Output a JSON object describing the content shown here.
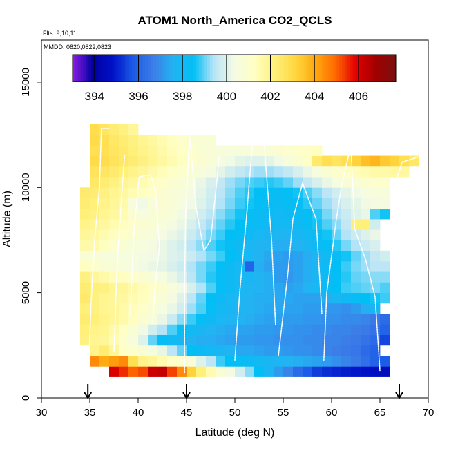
{
  "chart_data": {
    "type": "heatmap",
    "title": "ATOM1 North_America CO2_QCLS",
    "flights_label": "Flts: 9,10,11",
    "dates_label": "MMDD: 0820,0822,0823",
    "xlabel": "Latitude (deg N)",
    "ylabel": "Altitude (m)",
    "xlim": [
      30,
      70
    ],
    "ylim": [
      0,
      17000
    ],
    "x_ticks": [
      "30",
      "35",
      "40",
      "45",
      "50",
      "55",
      "60",
      "65",
      "70"
    ],
    "y_ticks": [
      "0",
      "5000",
      "10000",
      "15000"
    ],
    "colorbar": {
      "min": 393,
      "max": 407.7,
      "tick_values": [
        394,
        396,
        398,
        400,
        402,
        404,
        406
      ],
      "tick_labels": [
        "394",
        "396",
        "398",
        "400",
        "402",
        "404",
        "406"
      ],
      "colors": [
        "#8f1de6",
        "#0000a0",
        "#0011c8",
        "#1a5ae6",
        "#3d7de8",
        "#22b4f2",
        "#00bff5",
        "#b8e4f7",
        "#f4fbe3",
        "#ffffc4",
        "#fff07a",
        "#ffd840",
        "#ffaa10",
        "#ff6a00",
        "#e30000",
        "#a20000",
        "#7a1010"
      ]
    },
    "cell_size": {
      "lat": 1,
      "alt": 500
    },
    "rows": [
      {
        "alt": 1000,
        "lat_start": 37,
        "values": [
          406,
          405.5,
          405,
          405.2,
          406.2,
          406.3,
          405.3,
          404.5,
          403.2,
          402.2,
          401.5,
          400.8,
          400.4,
          399.8,
          399.2,
          398.5,
          397.8,
          397.2,
          396.8,
          396.2,
          395.8,
          395.4,
          395.2,
          395.1,
          395,
          394.9,
          394.8,
          394.7,
          394.6
        ]
      },
      {
        "alt": 1500,
        "lat_start": 35,
        "values": [
          404.5,
          404,
          404.2,
          404.5,
          402.8,
          402,
          401.8,
          401.5,
          401.2,
          401,
          400.6,
          400,
          399.5,
          398.8,
          398.5,
          398.3,
          398.1,
          398,
          397.8,
          397.7,
          397.6,
          397.5,
          397.4,
          397.3,
          397.2,
          397,
          396.8,
          396.6,
          396.3,
          396,
          395.8
        ]
      },
      {
        "alt": 2000,
        "lat_start": 35,
        "values": [
          402,
          402.3,
          401.8,
          401.2,
          401,
          400.8,
          400.5,
          400.2,
          399.5,
          399,
          398.5,
          398.2,
          398,
          397.8,
          397.6,
          397.4,
          397.4,
          397.3,
          397.2,
          397.2,
          397.1,
          397,
          397,
          396.9,
          396.8,
          396.7,
          396.6,
          396.5,
          396.2,
          396
        ]
      },
      {
        "alt": 2500,
        "lat_start": 34,
        "values": [
          402.1,
          401.9,
          401.8,
          401.5,
          401,
          400.6,
          400,
          399,
          398.3,
          398,
          397.8,
          397.6,
          397.5,
          397.5,
          397.4,
          397.3,
          397.2,
          397.2,
          397.1,
          397.1,
          397,
          397,
          397,
          396.9,
          396.9,
          396.8,
          396.8,
          396.7,
          396.6,
          396.4,
          396.2,
          395.5
        ]
      },
      {
        "alt": 3000,
        "lat_start": 34,
        "values": [
          402.2,
          402,
          401.9,
          401.6,
          401.2,
          400.8,
          400.3,
          399.8,
          399.4,
          398.9,
          398.3,
          398,
          397.8,
          397.6,
          397.5,
          397.4,
          397.3,
          397.3,
          397.2,
          397.2,
          397.1,
          397.1,
          397,
          397,
          396.9,
          396.9,
          396.8,
          396.8,
          396.7,
          396.6,
          396.4,
          396
        ]
      },
      {
        "alt": 3500,
        "lat_start": 34,
        "values": [
          402.3,
          402.2,
          402,
          401.8,
          401.6,
          401.3,
          400.9,
          400.6,
          400.2,
          399.7,
          399.2,
          398.8,
          398.4,
          398.1,
          397.9,
          397.7,
          397.6,
          397.5,
          397.4,
          397.3,
          397.3,
          397.2,
          397.2,
          397.1,
          397.1,
          397,
          397,
          396.9,
          396.9,
          396.8,
          396.6,
          396.2
        ]
      },
      {
        "alt": 4000,
        "lat_start": 34,
        "values": [
          402.2,
          402.1,
          401.9,
          401.8,
          401.6,
          401.4,
          401.1,
          400.8,
          400.5,
          400.2,
          399.8,
          399.3,
          398.9,
          398.4,
          398,
          397.8,
          397.7,
          397.6,
          397.5,
          397.4,
          397.4,
          397.3,
          397.3,
          397.2,
          397.2,
          397.1,
          397.1,
          397,
          397.2,
          397.5,
          397.8
        ]
      },
      {
        "alt": 4500,
        "lat_start": 34,
        "values": [
          402.4,
          402.1,
          401.9,
          401.8,
          401.7,
          401.5,
          401.3,
          401,
          400.7,
          400.4,
          400,
          399.5,
          399,
          398.5,
          398.1,
          397.9,
          397.7,
          397.6,
          397.5,
          397.5,
          397.4,
          397.4,
          397.3,
          397.3,
          397.3,
          397.5,
          397.8,
          398.1,
          398.3,
          398.5,
          398.6,
          398.8
        ]
      },
      {
        "alt": 5000,
        "lat_start": 34,
        "values": [
          402.3,
          402.2,
          402.1,
          401.9,
          401.8,
          401.6,
          401.4,
          401.2,
          400.9,
          400.6,
          400.3,
          399.9,
          399.4,
          398.9,
          398.4,
          398.1,
          397.9,
          397.7,
          397.6,
          397.5,
          397.4,
          397.3,
          397.4,
          397.6,
          397.9,
          398.2,
          398.5,
          398.8,
          398.9,
          399,
          399.1,
          398.9
        ]
      },
      {
        "alt": 5500,
        "lat_start": 34,
        "values": [
          402.1,
          401.8,
          401.6,
          401.4,
          401.3,
          401.1,
          400.9,
          400.7,
          400.5,
          400.2,
          399.9,
          399.5,
          399.1,
          398.7,
          398.3,
          398.1,
          397.9,
          397.8,
          397.7,
          397.5,
          397.2,
          397.1,
          397.3,
          397.5,
          397.8,
          398.1,
          398.4,
          398.7,
          399,
          399.1,
          399.2,
          399.2
        ]
      },
      {
        "alt": 6000,
        "lat_start": 34,
        "values": [
          401.3,
          401,
          400.8,
          400.7,
          400.6,
          400.5,
          400.3,
          400.2,
          400.1,
          399.9,
          399.7,
          399.4,
          399.1,
          398.8,
          398.4,
          398.1,
          397.9,
          396,
          397.5,
          397.3,
          397.2,
          397.2,
          397.3,
          397.5,
          397.8,
          398.2,
          398.5,
          398.8,
          399.1,
          399.3,
          399.5,
          399.5
        ]
      },
      {
        "alt": 6500,
        "lat_start": 34,
        "values": [
          400.8,
          400.7,
          400.6,
          400.6,
          400.5,
          400.5,
          400.4,
          400.3,
          400.2,
          400,
          399.9,
          399.7,
          399.4,
          399.1,
          398.8,
          398.5,
          398.2,
          397.9,
          397.6,
          397.4,
          397.3,
          397.2,
          397.3,
          397.5,
          397.7,
          398,
          398.3,
          398.6,
          399,
          399.3,
          399.6,
          399.8
        ]
      },
      {
        "alt": 7000,
        "lat_start": 34,
        "values": [
          401.6,
          401.6,
          401.3,
          401,
          400.8,
          400.6,
          400.5,
          400.4,
          400.2,
          400,
          399.8,
          399.5,
          399.2,
          398.9,
          398.6,
          398.3,
          398.1,
          397.9,
          397.7,
          397.6,
          397.5,
          397.5,
          397.6,
          397.8,
          398.1,
          398.4,
          398.7,
          399.1,
          399.4,
          399.7,
          399.9
        ]
      },
      {
        "alt": 7500,
        "lat_start": 34,
        "values": [
          401.8,
          401.7,
          401.5,
          401.3,
          401.1,
          400.9,
          400.7,
          400.6,
          400.4,
          400.2,
          400,
          399.7,
          399.4,
          399.1,
          398.8,
          398.5,
          398.3,
          398.1,
          397.9,
          397.8,
          397.7,
          397.7,
          397.8,
          398,
          398.3,
          398.6,
          399,
          399.4,
          399.7,
          400,
          400.2
        ]
      },
      {
        "alt": 8000,
        "lat_start": 34,
        "values": [
          402,
          401.9,
          401.7,
          401.5,
          401.3,
          401.1,
          400.9,
          400.8,
          400.6,
          400.4,
          400.2,
          399.9,
          399.6,
          399.3,
          399,
          398.7,
          398.5,
          398.3,
          398.2,
          398.1,
          398,
          398,
          398.1,
          398.3,
          398.6,
          398.9,
          399.2,
          399.6,
          402.2,
          402.2,
          399.8
        ]
      },
      {
        "alt": 8500,
        "lat_start": 34,
        "values": [
          402.2,
          402.1,
          401.9,
          401.7,
          401.5,
          400.9,
          400.5,
          400.7,
          400.8,
          400.6,
          400.3,
          400.1,
          399.8,
          399.5,
          399.2,
          398.9,
          398.6,
          398.4,
          398.2,
          398.1,
          398,
          398.1,
          398.2,
          398.4,
          398.7,
          399.1,
          399.4,
          399.7,
          400,
          400.2,
          398.9,
          398.6
        ]
      },
      {
        "alt": 9000,
        "lat_start": 34,
        "values": [
          402.3,
          402.2,
          402,
          401.8,
          401.6,
          400.6,
          400.3,
          400.7,
          400.9,
          400.7,
          400.5,
          400.3,
          400,
          399.7,
          399.4,
          399.1,
          398.8,
          398.6,
          398.4,
          398.3,
          398.2,
          398.3,
          398.4,
          398.7,
          399,
          399.3,
          399.6,
          399.9,
          400.1,
          400.3,
          400.4,
          400.4
        ]
      },
      {
        "alt": 9500,
        "lat_start": 34,
        "values": [
          402.4,
          402.3,
          402.1,
          401.9,
          401.7,
          401.5,
          401.3,
          401.1,
          400.9,
          400.7,
          400.6,
          400.4,
          400.1,
          399.8,
          399.5,
          399.2,
          398.9,
          398.7,
          398.5,
          398.4,
          398.3,
          398.4,
          398.6,
          398.9,
          399.2,
          399.5,
          399.8,
          400.1,
          400.3,
          400.5,
          400.6,
          400.6
        ]
      },
      {
        "alt": 10000,
        "lat_start": 35,
        "values": [
          402.5,
          402.3,
          402.1,
          401.9,
          401.7,
          401.5,
          401.3,
          401.1,
          400.9,
          400.7,
          400.5,
          400.2,
          399.9,
          399.6,
          399.3,
          399.1,
          398.9,
          398.8,
          398.7,
          398.8,
          399,
          399.3,
          399.6,
          399.9,
          400.2,
          400.5,
          400.7,
          400.8,
          400.9,
          401,
          401
        ]
      },
      {
        "alt": 10500,
        "lat_start": 35,
        "values": [
          402.7,
          402.6,
          402.4,
          402.2,
          402,
          401.8,
          401.6,
          401.4,
          401.2,
          401,
          400.8,
          400.6,
          400.4,
          400.1,
          399.8,
          399.6,
          399.4,
          399.3,
          399.3,
          399.4,
          399.6,
          399.9,
          400.2,
          400.5,
          400.8,
          401,
          401.2,
          401.4,
          401.5,
          401.6,
          401.6,
          401.7,
          401.7
        ]
      },
      {
        "alt": 11000,
        "lat_start": 35,
        "values": [
          403,
          402.9,
          402.7,
          402.5,
          402.3,
          402.1,
          401.9,
          401.7,
          401.5,
          401.3,
          401.1,
          400.9,
          400.7,
          400.5,
          400.3,
          400.1,
          400,
          400,
          400.1,
          400.3,
          400.6,
          400.9,
          401.2,
          402.4,
          402.8,
          402.6,
          402.8,
          403.2,
          403.6,
          403.8,
          403.4,
          403.2,
          402.8,
          402.5
        ]
      },
      {
        "alt": 11500,
        "lat_start": 35,
        "values": [
          402.8,
          402.8,
          402.6,
          402.4,
          402.2,
          402,
          401.8,
          401.6,
          401.4,
          401.2,
          401,
          400.8,
          400.7,
          400.6,
          400.6,
          400.6,
          400.6,
          400.7,
          400.8,
          400.9,
          401,
          401.1,
          401.2,
          401.3
        ]
      },
      {
        "alt": 12000,
        "lat_start": 35,
        "values": [
          403,
          402.8,
          402.5,
          402.3,
          402.1,
          401.9,
          401.7,
          401.5,
          401.3,
          401.1,
          400.9,
          400.8,
          400.8
        ]
      },
      {
        "alt": 12500,
        "lat_start": 35,
        "values": [
          402.9,
          402.6,
          402.3,
          402.1,
          401.8
        ]
      }
    ],
    "flight_tracks": [
      [
        [
          34.9,
          1500
        ],
        [
          35.1,
          4200
        ],
        [
          35.5,
          7500
        ],
        [
          36,
          10000
        ],
        [
          36.2,
          12800
        ],
        [
          37,
          12800
        ]
      ],
      [
        [
          37.5,
          2200
        ],
        [
          37.8,
          6000
        ],
        [
          38.2,
          9000
        ],
        [
          38.6,
          11500
        ]
      ],
      [
        [
          39.2,
          4000
        ],
        [
          39.5,
          7500
        ],
        [
          40.1,
          10500
        ],
        [
          41.3,
          10600
        ],
        [
          41.8,
          9800
        ],
        [
          42.2,
          7200
        ],
        [
          41.7,
          5000
        ],
        [
          41.5,
          3500
        ]
      ],
      [
        [
          44.8,
          1200
        ],
        [
          44.8,
          5000
        ],
        [
          44.9,
          8500
        ],
        [
          45.3,
          12500
        ],
        [
          46,
          9000
        ],
        [
          46.8,
          7000
        ],
        [
          47.5,
          7500
        ],
        [
          48.4,
          11500
        ]
      ],
      [
        [
          50,
          1800
        ],
        [
          50.5,
          5000
        ],
        [
          51.2,
          8600
        ],
        [
          51.8,
          12000
        ],
        [
          53,
          12200
        ],
        [
          53.8,
          7500
        ],
        [
          54.2,
          3500
        ]
      ],
      [
        [
          54.5,
          2000
        ],
        [
          55.5,
          6000
        ],
        [
          56,
          8500
        ],
        [
          57,
          10200
        ],
        [
          58.4,
          8500
        ],
        [
          59,
          4000
        ]
      ],
      [
        [
          59.2,
          1800
        ],
        [
          59.5,
          5000
        ],
        [
          60.5,
          8500
        ],
        [
          61,
          10000
        ],
        [
          62,
          12000
        ],
        [
          62.4,
          8000
        ],
        [
          63.5,
          6600
        ],
        [
          64.5,
          4800
        ],
        [
          65,
          1300
        ]
      ],
      [
        [
          66.3,
          9800
        ],
        [
          67.3,
          11200
        ],
        [
          70,
          11600
        ]
      ]
    ],
    "markers": [
      34.8,
      45,
      67
    ]
  }
}
